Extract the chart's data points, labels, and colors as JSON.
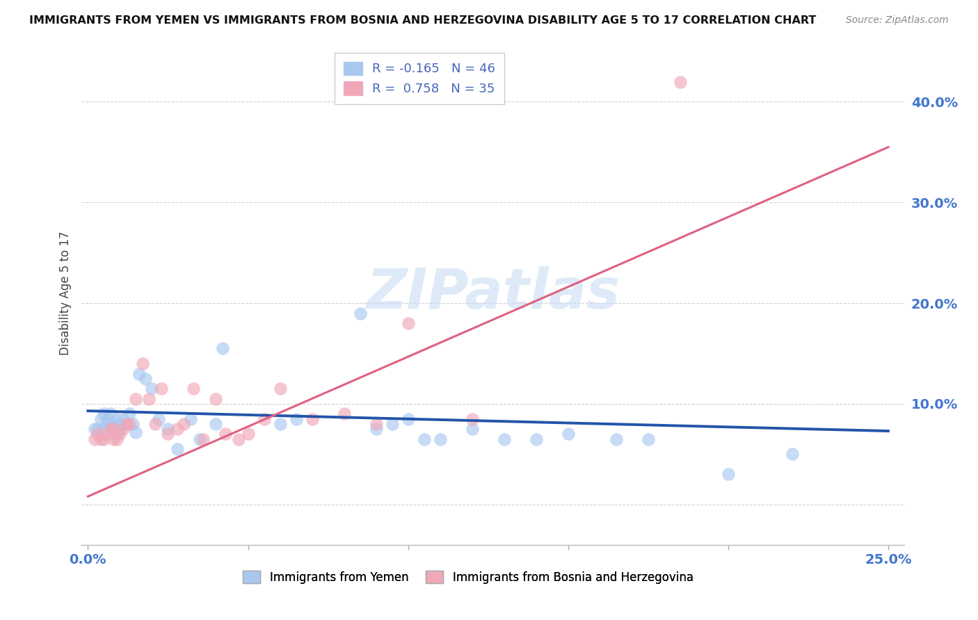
{
  "title": "IMMIGRANTS FROM YEMEN VS IMMIGRANTS FROM BOSNIA AND HERZEGOVINA DISABILITY AGE 5 TO 17 CORRELATION CHART",
  "source": "Source: ZipAtlas.com",
  "ylabel": "Disability Age 5 to 17",
  "xlim": [
    -0.002,
    0.255
  ],
  "ylim": [
    -0.04,
    0.46
  ],
  "yticks": [
    0.0,
    0.1,
    0.2,
    0.3,
    0.4
  ],
  "ytick_labels": [
    "",
    "10.0%",
    "20.0%",
    "30.0%",
    "40.0%"
  ],
  "xticks": [
    0.0,
    0.05,
    0.1,
    0.15,
    0.2,
    0.25
  ],
  "xtick_labels": [
    "0.0%",
    "",
    "",
    "",
    "",
    "25.0%"
  ],
  "legend_r_blue": "R = -0.165",
  "legend_n_blue": "N = 46",
  "legend_r_pink": "R =  0.758",
  "legend_n_pink": "N = 35",
  "watermark": "ZIPatlas",
  "blue_color": "#A8C8F0",
  "pink_color": "#F0A8B8",
  "blue_line_color": "#2255AA",
  "pink_line_color": "#E06080",
  "background_color": "#FFFFFF",
  "blue_scatter_x": [
    0.002,
    0.003,
    0.004,
    0.005,
    0.005,
    0.006,
    0.006,
    0.007,
    0.007,
    0.008,
    0.008,
    0.009,
    0.009,
    0.01,
    0.01,
    0.011,
    0.012,
    0.013,
    0.014,
    0.015,
    0.016,
    0.018,
    0.02,
    0.022,
    0.025,
    0.028,
    0.032,
    0.035,
    0.04,
    0.042,
    0.06,
    0.065,
    0.085,
    0.09,
    0.095,
    0.1,
    0.105,
    0.11,
    0.12,
    0.13,
    0.14,
    0.15,
    0.165,
    0.175,
    0.2,
    0.22
  ],
  "blue_scatter_y": [
    0.075,
    0.075,
    0.085,
    0.075,
    0.09,
    0.08,
    0.085,
    0.075,
    0.09,
    0.08,
    0.075,
    0.085,
    0.07,
    0.08,
    0.075,
    0.085,
    0.08,
    0.09,
    0.08,
    0.072,
    0.13,
    0.125,
    0.115,
    0.085,
    0.075,
    0.055,
    0.085,
    0.065,
    0.08,
    0.155,
    0.08,
    0.085,
    0.19,
    0.075,
    0.08,
    0.085,
    0.065,
    0.065,
    0.075,
    0.065,
    0.065,
    0.07,
    0.065,
    0.065,
    0.03,
    0.05
  ],
  "pink_scatter_x": [
    0.002,
    0.003,
    0.004,
    0.005,
    0.006,
    0.007,
    0.008,
    0.008,
    0.009,
    0.01,
    0.011,
    0.012,
    0.013,
    0.015,
    0.017,
    0.019,
    0.021,
    0.023,
    0.025,
    0.028,
    0.03,
    0.033,
    0.036,
    0.04,
    0.043,
    0.047,
    0.05,
    0.055,
    0.06,
    0.07,
    0.08,
    0.09,
    0.1,
    0.12,
    0.185
  ],
  "pink_scatter_y": [
    0.065,
    0.07,
    0.065,
    0.065,
    0.07,
    0.075,
    0.065,
    0.075,
    0.065,
    0.07,
    0.075,
    0.08,
    0.08,
    0.105,
    0.14,
    0.105,
    0.08,
    0.115,
    0.07,
    0.075,
    0.08,
    0.115,
    0.065,
    0.105,
    0.07,
    0.065,
    0.07,
    0.085,
    0.115,
    0.085,
    0.09,
    0.08,
    0.18,
    0.085,
    0.42
  ],
  "blue_trend_x": [
    0.0,
    0.25
  ],
  "blue_trend_y": [
    0.093,
    0.073
  ],
  "pink_trend_x": [
    0.0,
    0.25
  ],
  "pink_trend_y": [
    0.008,
    0.355
  ]
}
